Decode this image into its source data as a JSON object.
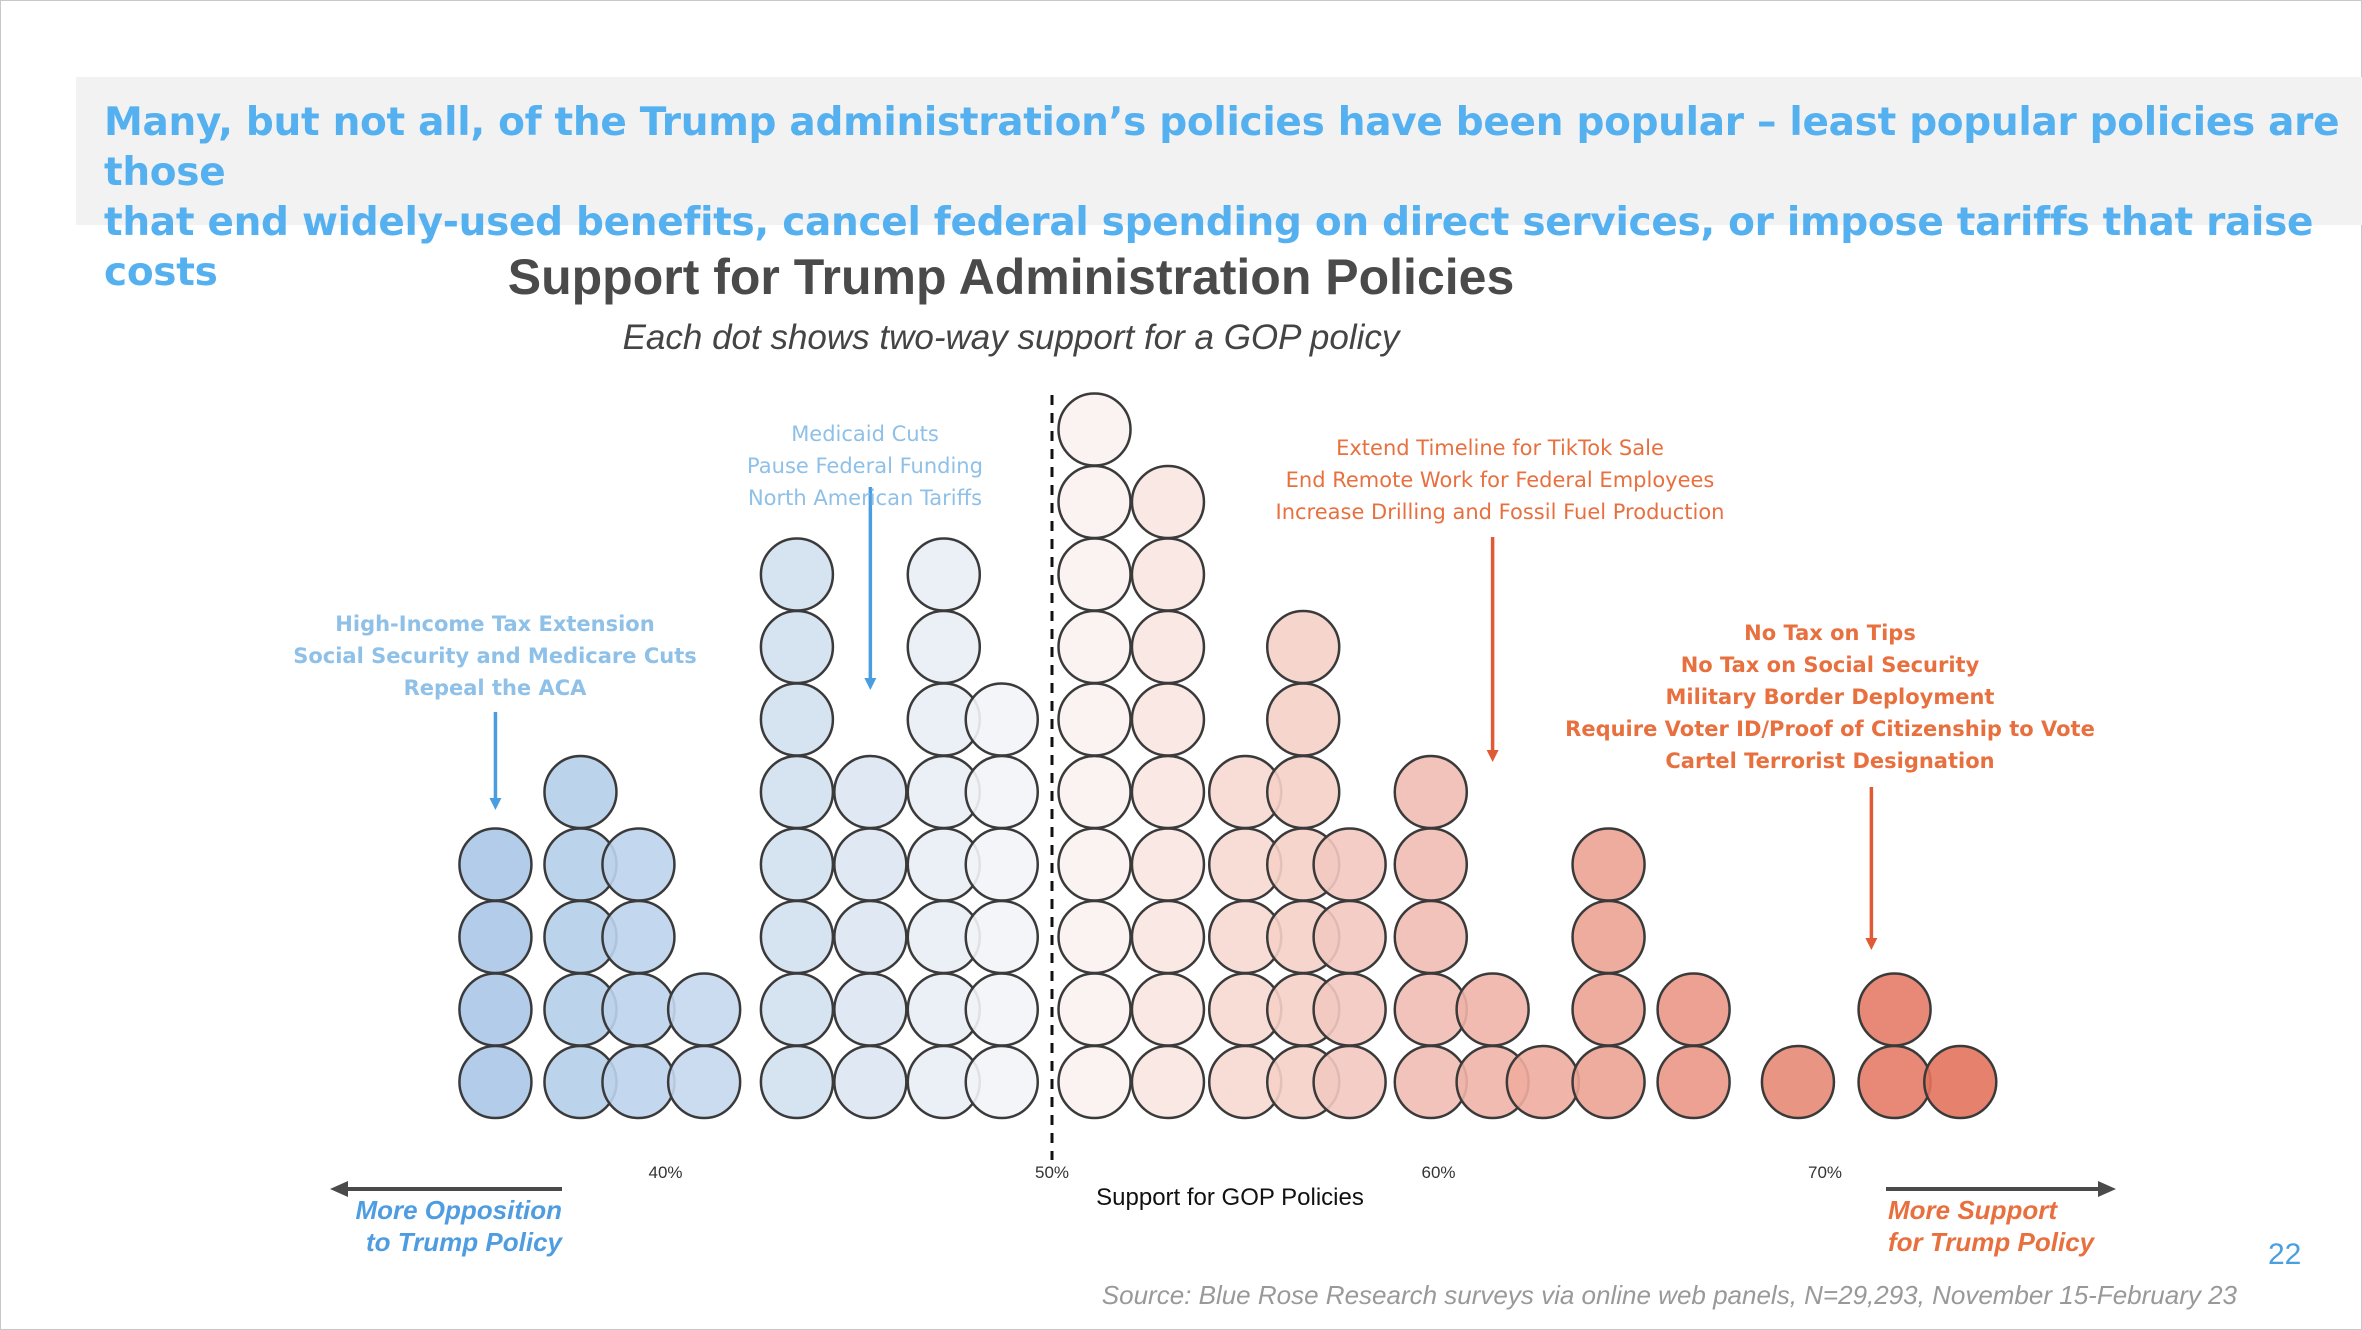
{
  "headline": {
    "line1": "Many, but not all, of the Trump administration’s policies have been popular – least popular policies are those",
    "line2": "that end widely-used benefits, cancel federal spending on direct services, or impose tariffs that raise costs"
  },
  "annotations": {
    "left_group_1": [
      "High-Income Tax Extension",
      "Social Security and Medicare Cuts",
      "Repeal the ACA"
    ],
    "left_group_2": [
      "Medicaid Cuts",
      "Pause Federal Funding",
      "North American Tariffs"
    ],
    "right_group_1": [
      "Extend Timeline for TikTok Sale",
      "End Remote Work for Federal Employees",
      "Increase Drilling and Fossil Fuel Production"
    ],
    "right_group_2": [
      "No Tax on Tips",
      "No Tax on Social Security",
      "Military Border Deployment",
      "Require Voter ID/Proof of Citizenship to Vote",
      "Cartel Terrorist Designation"
    ]
  },
  "direction_labels": {
    "left_line1": "More Opposition",
    "left_line2": "to Trump Policy",
    "right_line1": "More Support",
    "right_line2": "for Trump Policy"
  },
  "source": "Source: Blue Rose Research surveys via online web panels, N=29,293, November 15-February 23",
  "page_number": "22",
  "colors": {
    "headline": "#55b0f0",
    "oppose_strong": "#aac7e8",
    "neutral": "#fdfbf9",
    "support_strong": "#e2705a",
    "left_annotation": "#8ec0e8",
    "right_annotation": "#e8703f",
    "arrow_blue": "#4a9ee0",
    "arrow_orange": "#e05a35"
  },
  "chart_data": {
    "type": "scatter",
    "subtype": "dot-histogram (beeswarm)",
    "title": "Support for Trump Administration Policies",
    "subtitle": "Each dot shows two-way support for a GOP policy",
    "xlabel": "Support for GOP Policies",
    "ylabel": "",
    "xlim": [
      30,
      77
    ],
    "xticks": [
      40,
      50,
      60,
      70
    ],
    "xtick_labels": [
      "40%",
      "50%",
      "60%",
      "70%"
    ],
    "reference_line": {
      "x": 50,
      "style": "dashed"
    },
    "grid": false,
    "legend": "none",
    "columns": [
      {
        "x": 35.6,
        "count": 4
      },
      {
        "x": 37.8,
        "count": 5
      },
      {
        "x": 39.3,
        "count": 4
      },
      {
        "x": 41.0,
        "count": 2
      },
      {
        "x": 43.4,
        "count": 8
      },
      {
        "x": 45.3,
        "count": 5
      },
      {
        "x": 47.2,
        "count": 8
      },
      {
        "x": 48.7,
        "count": 6
      },
      {
        "x": 51.1,
        "count": 10
      },
      {
        "x": 53.0,
        "count": 9
      },
      {
        "x": 55.0,
        "count": 5
      },
      {
        "x": 56.5,
        "count": 7
      },
      {
        "x": 57.7,
        "count": 4
      },
      {
        "x": 59.8,
        "count": 5
      },
      {
        "x": 61.4,
        "count": 2
      },
      {
        "x": 62.7,
        "count": 1
      },
      {
        "x": 64.4,
        "count": 4
      },
      {
        "x": 66.6,
        "count": 2
      },
      {
        "x": 69.3,
        "count": 1
      },
      {
        "x": 71.8,
        "count": 2
      },
      {
        "x": 73.5,
        "count": 1
      }
    ],
    "total_policies": 95,
    "annotation_targets": [
      {
        "group": "left_group_1",
        "x": 35.6
      },
      {
        "group": "left_group_2",
        "x": 45.3
      },
      {
        "group": "right_group_1",
        "x": 61.4
      },
      {
        "group": "right_group_2",
        "x": 71.2
      }
    ]
  }
}
